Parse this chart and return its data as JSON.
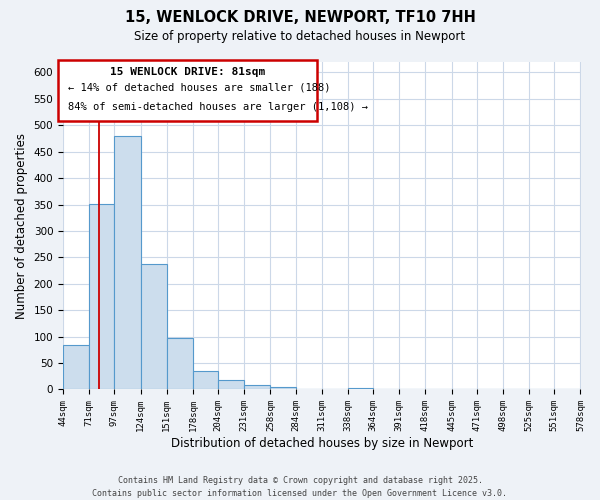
{
  "title": "15, WENLOCK DRIVE, NEWPORT, TF10 7HH",
  "subtitle": "Size of property relative to detached houses in Newport",
  "xlabel": "Distribution of detached houses by size in Newport",
  "ylabel": "Number of detached properties",
  "bar_edges": [
    44,
    71,
    97,
    124,
    151,
    178,
    204,
    231,
    258,
    284,
    311,
    338,
    364,
    391,
    418,
    445,
    471,
    498,
    525,
    551,
    578
  ],
  "bar_heights": [
    85,
    352,
    480,
    238,
    97,
    35,
    18,
    8,
    5,
    0,
    0,
    2,
    0,
    0,
    0,
    0,
    0,
    0,
    0,
    0
  ],
  "bar_color": "#ccdded",
  "bar_edge_color": "#5599cc",
  "vline_x": 81,
  "vline_color": "#cc0000",
  "ylim": [
    0,
    620
  ],
  "yticks": [
    0,
    50,
    100,
    150,
    200,
    250,
    300,
    350,
    400,
    450,
    500,
    550,
    600
  ],
  "annotation_title": "15 WENLOCK DRIVE: 81sqm",
  "annotation_line1": "← 14% of detached houses are smaller (188)",
  "annotation_line2": "84% of semi-detached houses are larger (1,108) →",
  "footer_line1": "Contains HM Land Registry data © Crown copyright and database right 2025.",
  "footer_line2": "Contains public sector information licensed under the Open Government Licence v3.0.",
  "bg_color": "#eef2f7",
  "plot_bg_color": "#ffffff",
  "grid_color": "#ccd8e8"
}
